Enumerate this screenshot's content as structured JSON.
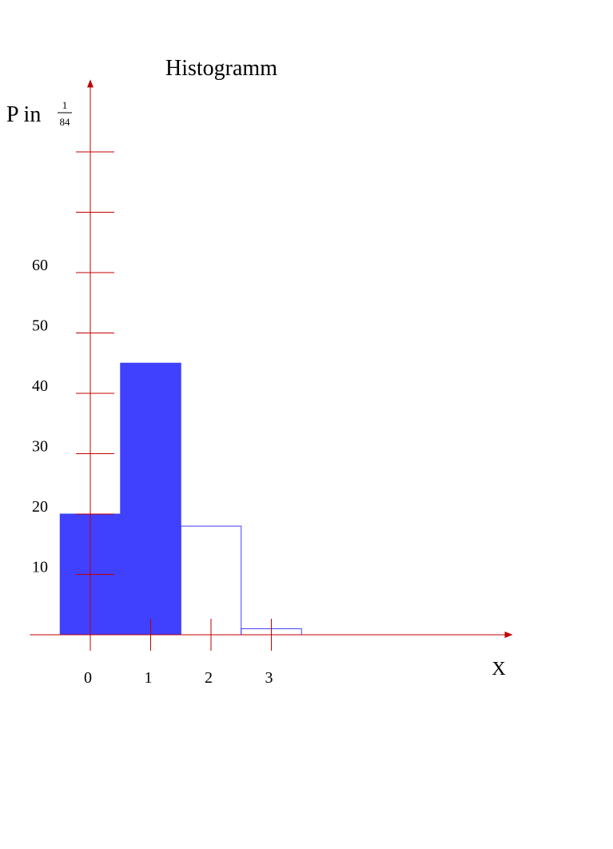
{
  "chart_data": {
    "type": "bar",
    "title": "Histogramm",
    "ylabel": {
      "prefix": "P in",
      "numerator": "1",
      "denominator": "84"
    },
    "xlabel": "X",
    "x_ticks": [
      "0",
      "1",
      "2",
      "3"
    ],
    "y_ticks": [
      {
        "value": 10,
        "label": "10"
      },
      {
        "value": 20,
        "label": "20"
      },
      {
        "value": 30,
        "label": "30"
      },
      {
        "value": 40,
        "label": "40"
      },
      {
        "value": 50,
        "label": "50"
      },
      {
        "value": 60,
        "label": "60"
      },
      {
        "value": 70,
        "label": ""
      },
      {
        "value": 80,
        "label": ""
      }
    ],
    "ylim": [
      0,
      92
    ],
    "xlim": [
      -1,
      7
    ],
    "bars": [
      {
        "x": 0,
        "value": 20,
        "filled": true
      },
      {
        "x": 1,
        "value": 45,
        "filled": true
      },
      {
        "x": 2,
        "value": 18,
        "filled": false
      },
      {
        "x": 3,
        "value": 1,
        "filled": false
      }
    ],
    "colors": {
      "axis": "#c00000",
      "bar_fill": "#4040ff",
      "bar_outline": "#4040ff"
    },
    "grid": false
  }
}
